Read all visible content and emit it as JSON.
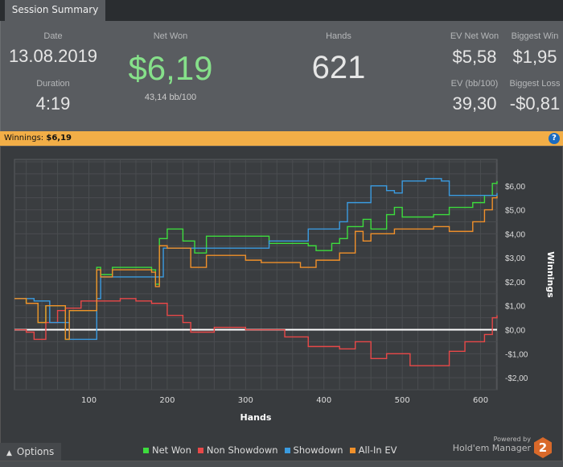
{
  "tab": {
    "label": "Session Summary"
  },
  "summary": {
    "date_label": "Date",
    "date": "13.08.2019",
    "duration_label": "Duration",
    "duration": "4:19",
    "net_won_label": "Net Won",
    "net_won": "$6,19",
    "bb100": "43,14 bb/100",
    "hands_label": "Hands",
    "hands": "621",
    "ev_net_won_label": "EV Net Won",
    "ev_net_won": "$5,58",
    "biggest_win_label": "Biggest Win",
    "biggest_win": "$1,95",
    "ev_bb100_label": "EV (bb/100)",
    "ev_bb100": "39,30",
    "biggest_loss_label": "Biggest Loss",
    "biggest_loss": "-$0,81"
  },
  "winnings_bar": {
    "label": "Winnings:",
    "value": "$6,19",
    "help": "?"
  },
  "options": {
    "label": "Options",
    "icon": "chevron-up-icon"
  },
  "branding": {
    "powered": "Powered by",
    "name": "Hold'em Manager",
    "logo": "2"
  },
  "colors": {
    "net_won": "#3ddc3d",
    "non_showdown": "#e84848",
    "showdown": "#3a9be0",
    "all_in_ev": "#f0902a",
    "accent": "#f2ae47"
  },
  "chart_data": {
    "type": "line",
    "xlabel": "Hands",
    "ylabel": "Winnings",
    "xlim": [
      5,
      621
    ],
    "ylim": [
      -2.5,
      7.1
    ],
    "xticks": [
      100,
      200,
      300,
      400,
      500,
      600
    ],
    "yticks": [
      {
        "v": 6,
        "t": "$6,00"
      },
      {
        "v": 5,
        "t": "$5,00"
      },
      {
        "v": 4,
        "t": "$4,00"
      },
      {
        "v": 3,
        "t": "$3,00"
      },
      {
        "v": 2,
        "t": "$2,00"
      },
      {
        "v": 1,
        "t": "$1,00"
      },
      {
        "v": 0,
        "t": "$0,00"
      },
      {
        "v": -1,
        "t": "-$1,00"
      },
      {
        "v": -2,
        "t": "-$2,00"
      }
    ],
    "series": [
      {
        "name": "Net Won",
        "key": "net_won",
        "points": [
          [
            5,
            1.3
          ],
          [
            20,
            1.1
          ],
          [
            35,
            0.3
          ],
          [
            45,
            1.0
          ],
          [
            70,
            -0.4
          ],
          [
            75,
            0.8
          ],
          [
            105,
            0.8
          ],
          [
            110,
            2.6
          ],
          [
            115,
            2.3
          ],
          [
            130,
            2.6
          ],
          [
            180,
            2.5
          ],
          [
            185,
            1.9
          ],
          [
            190,
            3.8
          ],
          [
            200,
            4.2
          ],
          [
            220,
            3.7
          ],
          [
            235,
            3.2
          ],
          [
            250,
            3.9
          ],
          [
            320,
            3.9
          ],
          [
            330,
            3.6
          ],
          [
            380,
            3.5
          ],
          [
            390,
            3.3
          ],
          [
            410,
            3.6
          ],
          [
            420,
            3.8
          ],
          [
            430,
            4.3
          ],
          [
            450,
            4.6
          ],
          [
            460,
            4.2
          ],
          [
            480,
            4.8
          ],
          [
            490,
            5.1
          ],
          [
            500,
            4.7
          ],
          [
            540,
            4.8
          ],
          [
            560,
            5.1
          ],
          [
            590,
            5.3
          ],
          [
            605,
            5.6
          ],
          [
            615,
            6.1
          ],
          [
            621,
            6.2
          ]
        ]
      },
      {
        "name": "Non Showdown",
        "key": "non_showdown",
        "points": [
          [
            5,
            0.0
          ],
          [
            20,
            -0.1
          ],
          [
            30,
            -0.4
          ],
          [
            45,
            0.3
          ],
          [
            60,
            0.8
          ],
          [
            70,
            0.9
          ],
          [
            90,
            1.2
          ],
          [
            110,
            1.2
          ],
          [
            140,
            1.3
          ],
          [
            160,
            1.2
          ],
          [
            180,
            1.1
          ],
          [
            200,
            0.6
          ],
          [
            220,
            0.3
          ],
          [
            230,
            -0.1
          ],
          [
            260,
            0.1
          ],
          [
            300,
            0.0
          ],
          [
            350,
            -0.3
          ],
          [
            380,
            -0.7
          ],
          [
            420,
            -0.8
          ],
          [
            440,
            -0.5
          ],
          [
            460,
            -1.2
          ],
          [
            480,
            -1.0
          ],
          [
            510,
            -1.5
          ],
          [
            540,
            -1.5
          ],
          [
            560,
            -0.9
          ],
          [
            580,
            -0.5
          ],
          [
            605,
            -0.2
          ],
          [
            615,
            0.5
          ],
          [
            621,
            0.6
          ]
        ]
      },
      {
        "name": "Showdown",
        "key": "showdown",
        "points": [
          [
            5,
            1.3
          ],
          [
            30,
            1.2
          ],
          [
            50,
            0.3
          ],
          [
            75,
            -0.4
          ],
          [
            105,
            -0.4
          ],
          [
            110,
            1.3
          ],
          [
            115,
            2.2
          ],
          [
            190,
            2.2
          ],
          [
            195,
            3.4
          ],
          [
            300,
            3.4
          ],
          [
            330,
            3.7
          ],
          [
            380,
            4.2
          ],
          [
            420,
            4.5
          ],
          [
            430,
            5.3
          ],
          [
            460,
            6.0
          ],
          [
            480,
            5.8
          ],
          [
            490,
            5.7
          ],
          [
            500,
            6.2
          ],
          [
            530,
            6.3
          ],
          [
            550,
            6.2
          ],
          [
            560,
            5.6
          ],
          [
            610,
            5.6
          ],
          [
            621,
            5.7
          ]
        ]
      },
      {
        "name": "All-In EV",
        "key": "all_in_ev",
        "points": [
          [
            5,
            1.3
          ],
          [
            20,
            1.1
          ],
          [
            35,
            0.3
          ],
          [
            45,
            1.0
          ],
          [
            70,
            -0.4
          ],
          [
            75,
            0.8
          ],
          [
            105,
            0.8
          ],
          [
            110,
            2.5
          ],
          [
            115,
            2.2
          ],
          [
            130,
            2.5
          ],
          [
            180,
            2.4
          ],
          [
            185,
            1.8
          ],
          [
            190,
            3.5
          ],
          [
            200,
            3.4
          ],
          [
            230,
            2.6
          ],
          [
            250,
            3.1
          ],
          [
            300,
            2.9
          ],
          [
            320,
            2.8
          ],
          [
            370,
            2.6
          ],
          [
            390,
            2.9
          ],
          [
            420,
            3.2
          ],
          [
            440,
            4.1
          ],
          [
            450,
            3.7
          ],
          [
            460,
            4.0
          ],
          [
            490,
            4.2
          ],
          [
            540,
            4.3
          ],
          [
            560,
            4.1
          ],
          [
            590,
            4.5
          ],
          [
            605,
            5.0
          ],
          [
            615,
            5.5
          ],
          [
            621,
            5.58
          ]
        ]
      }
    ]
  }
}
